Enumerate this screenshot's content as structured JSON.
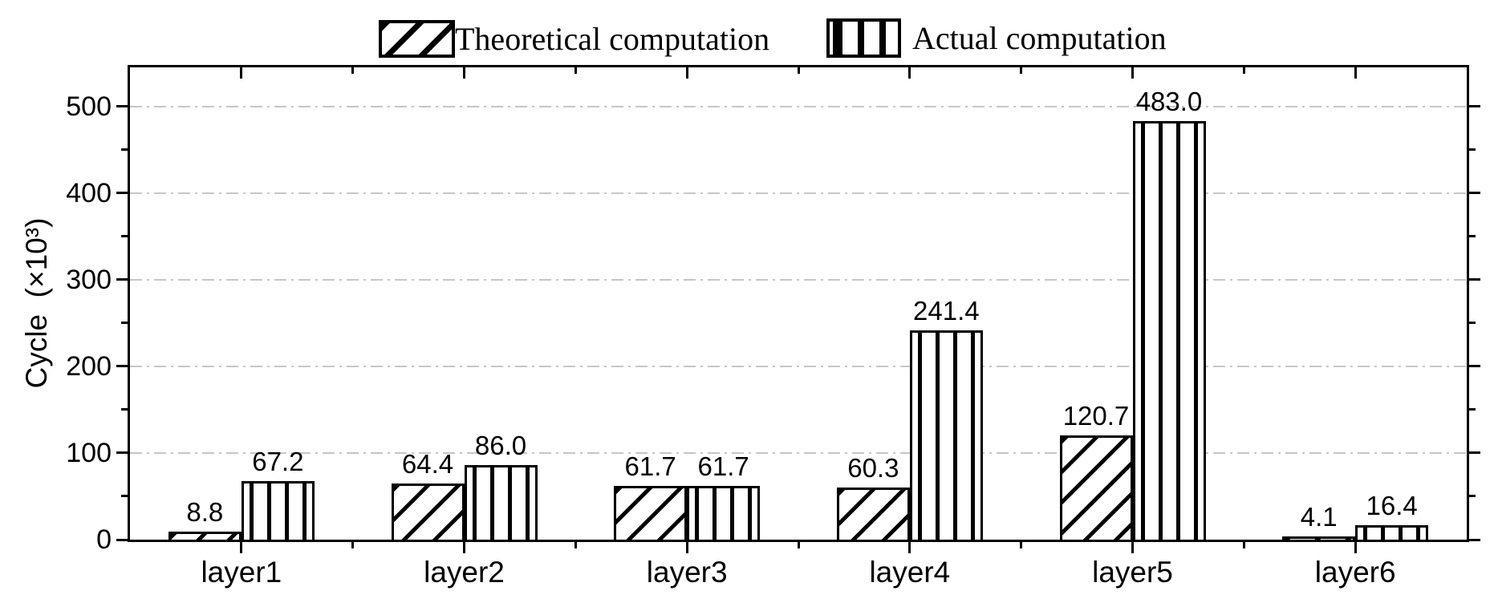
{
  "chart_data": {
    "type": "bar",
    "title": "",
    "ylabel": "Cycle  (×10³)",
    "xlabel": "",
    "categories": [
      "layer1",
      "layer2",
      "layer3",
      "layer4",
      "layer5",
      "layer6"
    ],
    "series": [
      {
        "name": "Theoretical computation",
        "hatch": "diagonal",
        "values": [
          8.8,
          64.4,
          61.7,
          60.3,
          120.7,
          4.1
        ],
        "value_labels": [
          "8.8",
          "64.4",
          "61.7",
          "60.3",
          "120.7",
          "4.1"
        ]
      },
      {
        "name": "Actual computation",
        "hatch": "vertical",
        "values": [
          67.2,
          86.0,
          61.7,
          241.4,
          483.0,
          16.4
        ],
        "value_labels": [
          "67.2",
          "86.0",
          "61.7",
          "241.4",
          "483.0",
          "16.4"
        ]
      }
    ],
    "ylim": [
      0,
      545
    ],
    "yticks_major": [
      0,
      100,
      200,
      300,
      400,
      500
    ],
    "ytick_labels": [
      "0",
      "100",
      "200",
      "300",
      "400",
      "500"
    ],
    "yticks_minor": [
      50,
      150,
      250,
      350,
      450
    ],
    "grid": {
      "horizontal": true,
      "style": "dash-dot",
      "color": "#c6c6c6"
    },
    "legend": {
      "position": "top"
    },
    "colors": {
      "bar_fill": "#ffffff",
      "bar_stroke": "#000000",
      "axis": "#000000",
      "text": "#000000",
      "grid": "#c6c6c6"
    }
  }
}
